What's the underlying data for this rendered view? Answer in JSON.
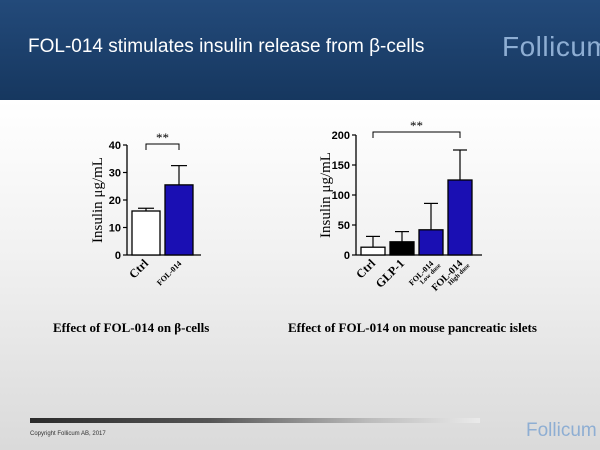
{
  "slide": {
    "title": "FOL-014 stimulates insulin release from β-cells",
    "logo_text": "Follicum",
    "copyright": "Copyright Follicum AB, 2017",
    "colors": {
      "header": "#1c4170",
      "logo": "#8eaed3",
      "bar_blue": "#1a0fb3",
      "bar_black": "#000000",
      "bar_white": "#ffffff"
    }
  },
  "chart_data": [
    {
      "type": "bar",
      "categories": [
        "Ctrl",
        "FOL-014"
      ],
      "values": [
        16,
        25.5
      ],
      "errors": [
        1,
        7
      ],
      "colors": [
        "#ffffff",
        "#1a0fb3"
      ],
      "ylabel": "Insulin μg/mL",
      "ylim": [
        0,
        40
      ],
      "yticks": [
        0,
        10,
        20,
        30,
        40
      ],
      "significance": {
        "from": 0,
        "to": 1,
        "label": "**"
      },
      "caption": "Effect of FOL-014 on β-cells"
    },
    {
      "type": "bar",
      "categories": [
        "Ctrl",
        "GLP-1",
        "FOL-014",
        "FOL-014"
      ],
      "sublabels": [
        "",
        "",
        "Low dose",
        "High dose"
      ],
      "values": [
        13,
        22,
        42,
        125
      ],
      "errors": [
        18,
        17,
        44,
        50
      ],
      "colors": [
        "#ffffff",
        "#000000",
        "#1a0fb3",
        "#1a0fb3"
      ],
      "ylabel": "Insulin μg/mL",
      "ylim": [
        0,
        200
      ],
      "yticks": [
        0,
        50,
        100,
        150,
        200
      ],
      "significance": {
        "from": 0,
        "to": 3,
        "label": "**"
      },
      "caption": "Effect of FOL-014 on mouse pancreatic islets"
    }
  ]
}
